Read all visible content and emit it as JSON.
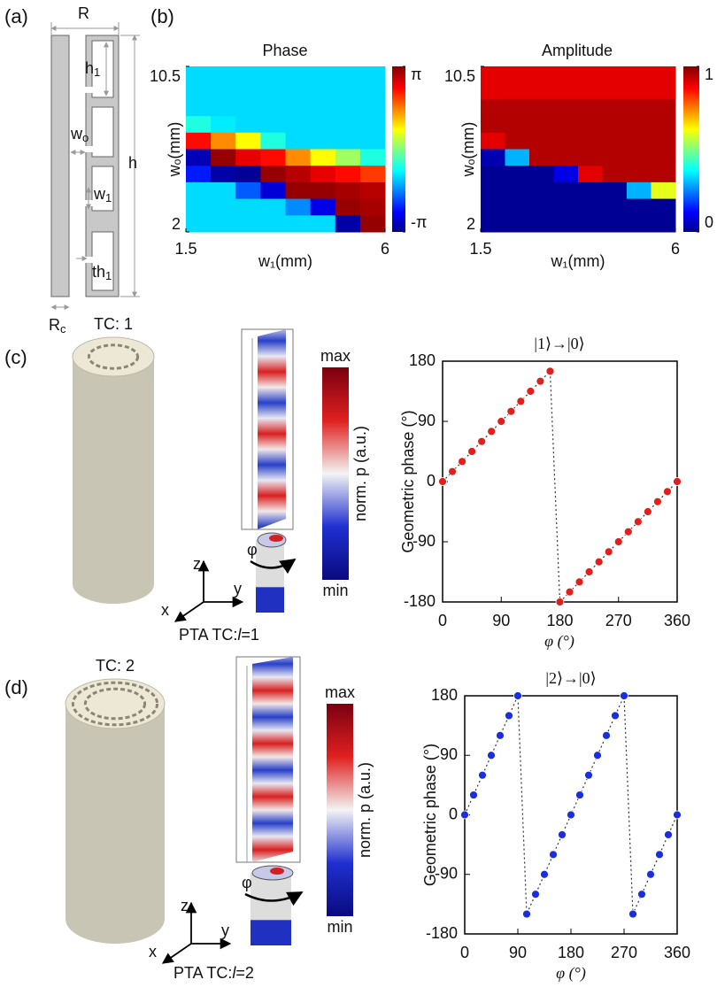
{
  "figure": {
    "panel_labels": [
      "(a)",
      "(b)",
      "(c)",
      "(d)"
    ],
    "unit_cell": {
      "R": {
        "base": "R"
      },
      "h1": {
        "base": "h",
        "sub": "1"
      },
      "wo": {
        "base": "w",
        "sub": "o"
      },
      "h": {
        "base": "h"
      },
      "w1": {
        "base": "w",
        "sub": "1"
      },
      "th1": {
        "base": "th",
        "sub": "1"
      },
      "Rc": {
        "base": "R",
        "sub": "c"
      }
    },
    "panel_c": {
      "tc_label": "TC: 1",
      "max": "max",
      "min": "min",
      "colorbar_label": "norm. p (a.u.)",
      "axes": [
        "z",
        "y",
        "x"
      ],
      "rotation": "φ",
      "pta": {
        "prefix": "PTA TC:",
        "symbol": "l",
        "suffix": "=1"
      }
    },
    "panel_d": {
      "tc_label": "TC: 2",
      "max": "max",
      "min": "min",
      "colorbar_label": "norm. p (a.u.)",
      "axes": [
        "z",
        "y",
        "x"
      ],
      "rotation": "φ",
      "pta": {
        "prefix": "PTA TC:",
        "symbol": "l",
        "suffix": "=2"
      }
    }
  },
  "chart_data": [
    {
      "type": "heatmap",
      "title": "Phase",
      "xlabel": "w₁(mm)",
      "ylabel": "wₒ(mm)",
      "xlim": [
        1.5,
        6
      ],
      "ylim": [
        2,
        10.5
      ],
      "xticks": [
        1.5,
        6
      ],
      "yticks": [
        2,
        10.5
      ],
      "colormap": "jet",
      "clim": [
        -3.1416,
        3.1416
      ],
      "cticks": [
        {
          "value": -3.1416,
          "label": "-π"
        },
        {
          "value": 3.1416,
          "label": "π"
        }
      ],
      "values": [
        [
          -1,
          -1,
          -1,
          -1,
          -1,
          -1,
          -1,
          -1
        ],
        [
          -1,
          -1,
          -1,
          -1,
          -1,
          -1,
          -1,
          -1
        ],
        [
          -1,
          -1,
          -1,
          -1,
          -1,
          -1,
          -1,
          -1
        ],
        [
          -0.6,
          -0.9,
          -1,
          -1,
          -1,
          -1,
          -1,
          -1
        ],
        [
          2.3,
          1.5,
          0.8,
          -0.6,
          -1,
          -1,
          -1,
          -1
        ],
        [
          -2.8,
          3.0,
          2.5,
          2.3,
          1.5,
          0.8,
          0.2,
          -0.6
        ],
        [
          -2.2,
          -2.9,
          -3.0,
          3.0,
          2.8,
          2.5,
          2.3,
          2.0
        ],
        [
          -1,
          -1,
          -1.8,
          -2.6,
          3.0,
          3.0,
          2.9,
          2.8
        ],
        [
          -1,
          -1,
          -1,
          -1,
          -1.5,
          -2.5,
          3.0,
          2.9
        ],
        [
          -1,
          -1,
          -1,
          -1,
          -1,
          -1,
          -2.9,
          3.0
        ]
      ]
    },
    {
      "type": "heatmap",
      "title": "Amplitude",
      "xlabel": "w₁(mm)",
      "ylabel": "wₒ(mm)",
      "xlim": [
        1.5,
        6
      ],
      "ylim": [
        2,
        10.5
      ],
      "xticks": [
        1.5,
        6
      ],
      "yticks": [
        2,
        10.5
      ],
      "colormap": "jet",
      "clim": [
        0,
        1
      ],
      "cticks": [
        0,
        1
      ],
      "values": [
        [
          0.9,
          0.9,
          0.9,
          0.9,
          0.9,
          0.9,
          0.9,
          0.9
        ],
        [
          0.9,
          0.9,
          0.9,
          0.9,
          0.9,
          0.9,
          0.9,
          0.9
        ],
        [
          0.95,
          0.95,
          0.95,
          0.95,
          0.95,
          0.95,
          0.95,
          0.95
        ],
        [
          0.95,
          0.95,
          0.95,
          0.95,
          0.95,
          0.95,
          0.95,
          0.95
        ],
        [
          0.9,
          0.95,
          0.95,
          0.95,
          0.95,
          0.95,
          0.95,
          0.95
        ],
        [
          0.05,
          0.3,
          0.95,
          0.95,
          0.95,
          0.95,
          0.95,
          0.95
        ],
        [
          0.02,
          0.02,
          0.02,
          0.1,
          0.9,
          0.95,
          0.95,
          0.95
        ],
        [
          0.02,
          0.02,
          0.02,
          0.02,
          0.02,
          0.02,
          0.3,
          0.6
        ],
        [
          0.02,
          0.02,
          0.02,
          0.02,
          0.02,
          0.02,
          0.02,
          0.02
        ],
        [
          0.02,
          0.02,
          0.02,
          0.02,
          0.02,
          0.02,
          0.02,
          0.02
        ]
      ]
    },
    {
      "type": "scatter",
      "title": "|1⟩→|0⟩",
      "xlabel": "φ (°)",
      "ylabel": "Geometric phase (°)",
      "xlim": [
        0,
        360
      ],
      "ylim": [
        -180,
        180
      ],
      "xticks": [
        0,
        90,
        180,
        270,
        360
      ],
      "yticks": [
        -180,
        -90,
        0,
        90,
        180
      ],
      "color": "#e0201c",
      "x": [
        0,
        15,
        30,
        45,
        60,
        75,
        90,
        105,
        120,
        135,
        150,
        165,
        180,
        195,
        210,
        225,
        240,
        255,
        270,
        285,
        300,
        315,
        330,
        345,
        360
      ],
      "values": [
        0,
        15,
        30,
        45,
        60,
        75,
        90,
        105,
        120,
        135,
        150,
        165,
        -180,
        -165,
        -150,
        -135,
        -120,
        -105,
        -90,
        -75,
        -60,
        -45,
        -30,
        -15,
        0
      ]
    },
    {
      "type": "scatter",
      "title": "|2⟩→|0⟩",
      "xlabel": "φ (°)",
      "ylabel": "Geometric phase (°)",
      "xlim": [
        0,
        360
      ],
      "ylim": [
        -180,
        180
      ],
      "xticks": [
        0,
        90,
        180,
        270,
        360
      ],
      "yticks": [
        -180,
        -90,
        0,
        90,
        180
      ],
      "color": "#1a2ee0",
      "x": [
        0,
        15,
        30,
        45,
        60,
        75,
        90,
        105,
        120,
        135,
        150,
        165,
        180,
        195,
        210,
        225,
        240,
        255,
        270,
        285,
        300,
        315,
        330,
        345,
        360
      ],
      "values": [
        0,
        30,
        60,
        90,
        120,
        150,
        180,
        -150,
        -120,
        -90,
        -60,
        -30,
        0,
        30,
        60,
        90,
        120,
        150,
        180,
        -150,
        -120,
        -90,
        -60,
        -30,
        0
      ]
    }
  ]
}
